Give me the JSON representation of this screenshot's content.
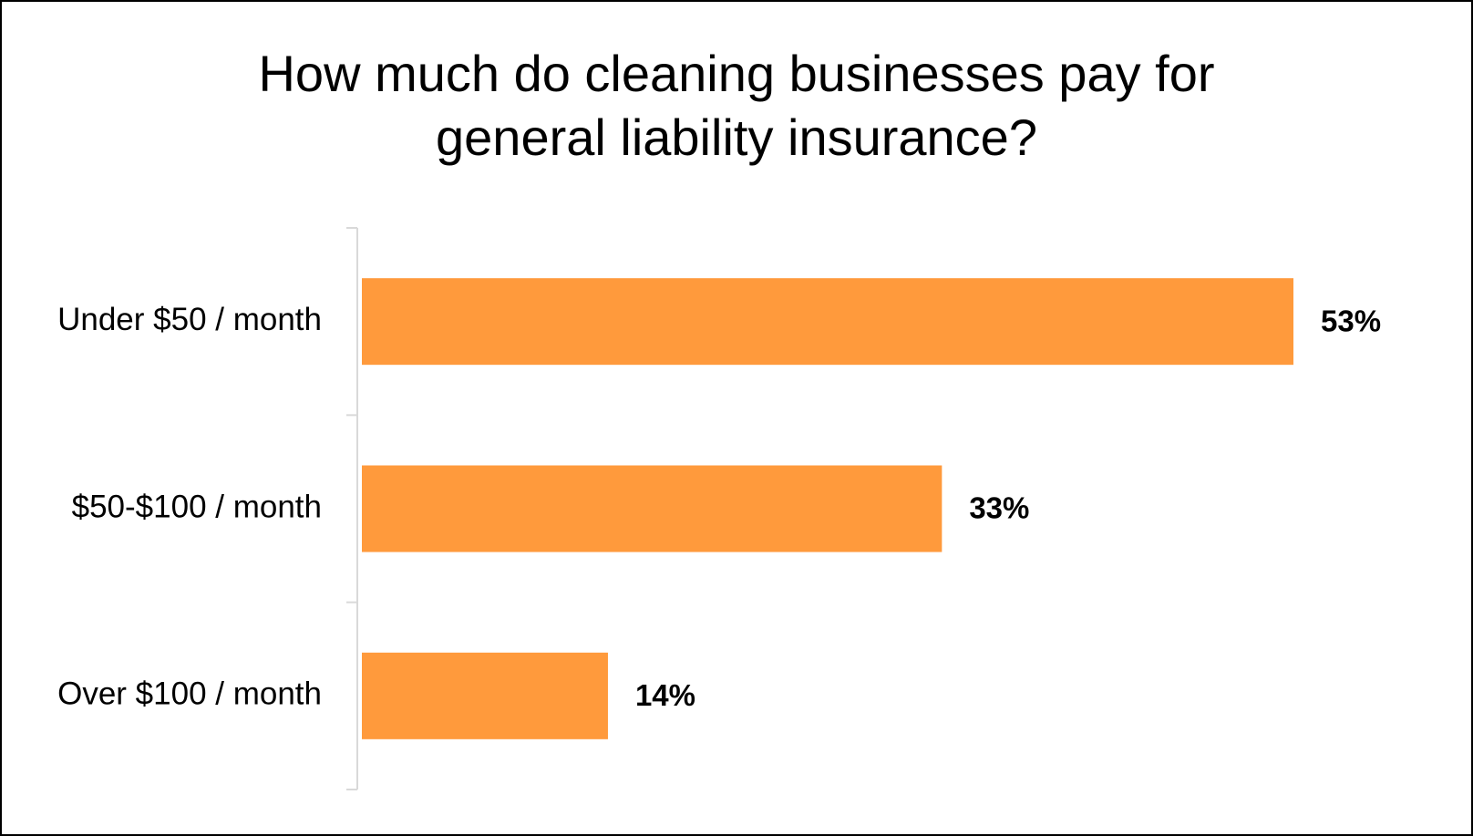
{
  "chart_data": {
    "type": "bar",
    "orientation": "horizontal",
    "title": "How much do cleaning businesses pay for general liability insurance?",
    "title_lines": [
      "How much do cleaning businesses pay for",
      "general liability insurance?"
    ],
    "categories": [
      "Under $50 / month",
      "$50-$100 / month",
      "Over $100 / month"
    ],
    "values": [
      53,
      33,
      14
    ],
    "value_labels": [
      "53%",
      "33%",
      "14%"
    ],
    "xlim": [
      0,
      53
    ],
    "grid": false,
    "legend": "none",
    "bar_color": "#FF9A3C",
    "axis_color": "#D9D9D9"
  }
}
